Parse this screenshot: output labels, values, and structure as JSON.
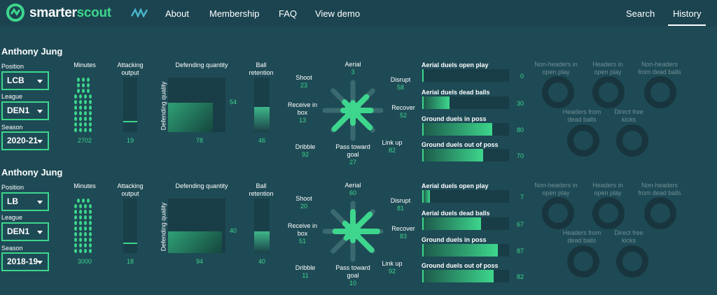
{
  "brand": {
    "part1": "smarter",
    "part2": "scout"
  },
  "nav": {
    "items": [
      "About",
      "Membership",
      "FAQ",
      "View demo"
    ],
    "search": "Search",
    "history": "History"
  },
  "labels": {
    "position": "Position",
    "league": "League",
    "season": "Season",
    "minutes": "Minutes",
    "attacking": "Attacking output",
    "def_quantity": "Defending quantity",
    "def_quality": "Defending quality",
    "ball_retention": "Ball retention",
    "shoot": "Shoot",
    "aerial": "Aerial",
    "disrupt": "Disrupt",
    "receive": "Receive in box",
    "recover": "Recover",
    "dribble": "Dribble",
    "pass_goal": "Pass toward goal",
    "link_up": "Link up",
    "duel_open": "Aerial duels open play",
    "duel_dead": "Aerial duels dead balls",
    "duel_ground_in": "Ground duels in poss",
    "duel_ground_out": "Ground duels out of poss",
    "h_nh_open": "Non-headers in open play",
    "h_h_open": "Headers in open play",
    "h_nh_dead": "Non-headers from dead balls",
    "h_h_dead": "Headers from dead balls",
    "h_free": "Direct free kicks"
  },
  "players": [
    {
      "name": "Anthony Jung",
      "position": "LCB",
      "league": "DEN1",
      "season": "2020-21",
      "minutes": "2702",
      "attacking": "19",
      "def_quantity": "78",
      "def_quality": "54",
      "ball_retention": "46",
      "shoot": "23",
      "aerial": "3",
      "disrupt": "58",
      "receive": "13",
      "recover": "52",
      "dribble": "92",
      "pass_goal": "27",
      "link_up": "82",
      "duel_open": "0",
      "duel_dead": "30",
      "duel_ground_in": "80",
      "duel_ground_out": "70"
    },
    {
      "name": "Anthony Jung",
      "position": "LB",
      "league": "DEN1",
      "season": "2018-19",
      "minutes": "3000",
      "attacking": "18",
      "def_quantity": "94",
      "def_quality": "40",
      "ball_retention": "40",
      "shoot": "20",
      "aerial": "60",
      "disrupt": "81",
      "receive": "51",
      "recover": "83",
      "dribble": "11",
      "pass_goal": "10",
      "link_up": "92",
      "duel_open": "7",
      "duel_dead": "67",
      "duel_ground_in": "87",
      "duel_ground_out": "82"
    }
  ],
  "colors": {
    "accent": "#3dd68c",
    "background": "#1e4a55",
    "nav": "#1b4450"
  }
}
